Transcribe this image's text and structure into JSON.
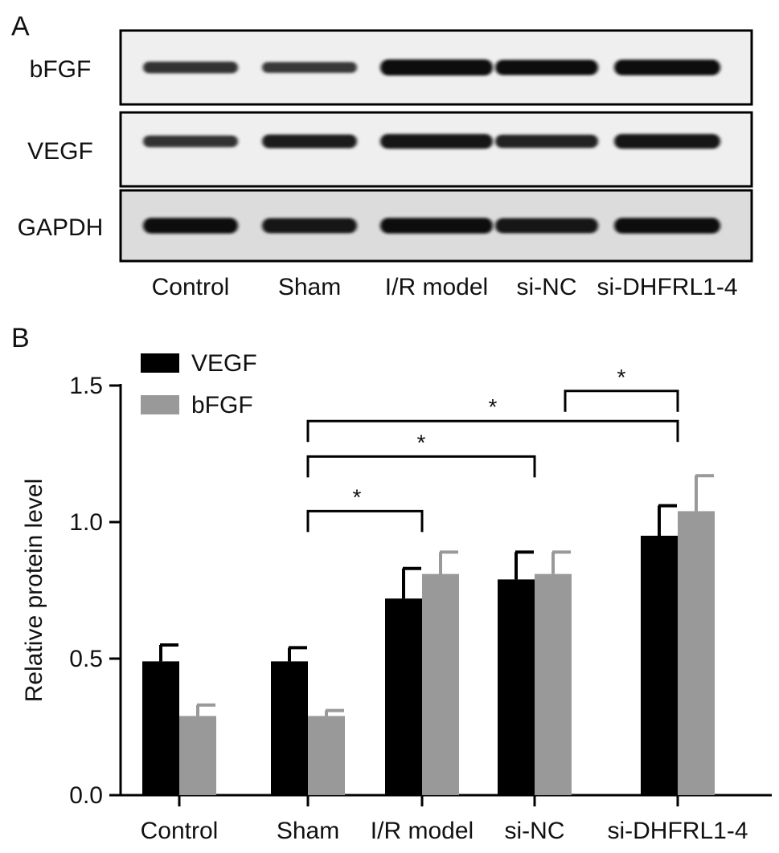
{
  "panel_a": {
    "label": "A",
    "proteins": [
      "bFGF",
      "VEGF",
      "GAPDH"
    ],
    "lanes": [
      "Control",
      "Sham",
      "I/R model",
      "si-NC",
      "si-DHFRL1-4"
    ],
    "band_intensity": {
      "bFGF": [
        0.55,
        0.45,
        1.0,
        0.92,
        0.95
      ],
      "VEGF": [
        0.55,
        0.75,
        0.85,
        0.7,
        0.85
      ],
      "GAPDH": [
        0.95,
        0.9,
        0.95,
        0.9,
        0.95
      ]
    }
  },
  "chart_data": {
    "panel_label": "B",
    "type": "bar",
    "categories": [
      "Control",
      "Sham",
      "I/R model",
      "si-NC",
      "si-DHFRL1-4"
    ],
    "series": [
      {
        "name": "VEGF",
        "color": "#000000",
        "values": [
          0.49,
          0.49,
          0.72,
          0.79,
          0.95
        ],
        "errors": [
          0.06,
          0.05,
          0.11,
          0.1,
          0.11
        ]
      },
      {
        "name": "bFGF",
        "color": "#999999",
        "values": [
          0.29,
          0.29,
          0.81,
          0.81,
          1.04
        ],
        "errors": [
          0.04,
          0.02,
          0.08,
          0.08,
          0.13
        ]
      }
    ],
    "xlabel": "",
    "ylabel": "Relative protein level",
    "ylim": [
      0.0,
      1.5
    ],
    "yticks": [
      "0.0",
      "0.5",
      "1.0",
      "1.5"
    ],
    "grid": false,
    "legend_position": "top-left",
    "significance": [
      {
        "from": "Sham",
        "to": "I/R model",
        "label": "*",
        "level": 1.04
      },
      {
        "from": "Sham",
        "to": "si-NC",
        "label": "*",
        "level": 1.24
      },
      {
        "from": "Sham",
        "to": "si-DHFRL1-4",
        "label": "*",
        "level": 1.37
      },
      {
        "from": "si-NC",
        "to": "si-DHFRL1-4",
        "label": "*",
        "level": 1.48
      }
    ]
  }
}
